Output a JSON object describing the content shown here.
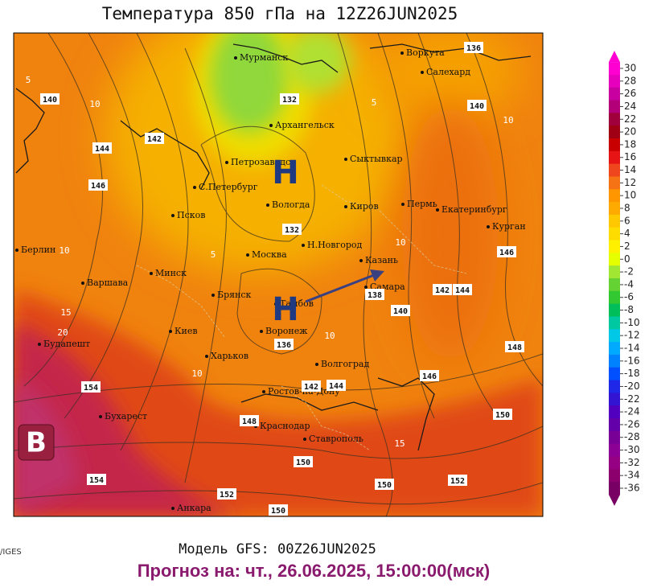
{
  "header": {
    "title": "Температура 850 гПа на 12Z26JUN2025"
  },
  "map": {
    "cities": [
      "Мурманск",
      "Воркута",
      "Салехард",
      "Архангельск",
      "Петрозаводск",
      "Сыктывкар",
      "С.Петербург",
      "Вологда",
      "Киров",
      "Пермь",
      "Екатеринбург",
      "Псков",
      "Курган",
      "Берлин",
      "Н.Новгород",
      "Москва",
      "Казань",
      "Минск",
      "Варшава",
      "Самара",
      "Брянск",
      "Тамбов",
      "Киев",
      "Воронеж",
      "Харьков",
      "Будапешт",
      "Волгоград",
      "Ростов-на-Дону",
      "Бухарест",
      "Краснодар",
      "Ставрополь",
      "Анкара"
    ],
    "height_labels": [
      "140",
      "144",
      "142",
      "146",
      "132",
      "136",
      "140",
      "132",
      "146",
      "142",
      "144",
      "138",
      "140",
      "136",
      "148",
      "146",
      "142",
      "144",
      "154",
      "150",
      "148",
      "150",
      "150",
      "152",
      "154",
      "152",
      "150"
    ],
    "temp_labels": [
      "5",
      "10",
      "5",
      "10",
      "5",
      "10",
      "15",
      "20",
      "10",
      "10",
      "15",
      "10"
    ],
    "pressure_centers": [
      "Н",
      "Н",
      "В"
    ]
  },
  "colorbar": {
    "ticks": [
      30,
      28,
      26,
      24,
      22,
      20,
      18,
      16,
      14,
      12,
      10,
      8,
      6,
      4,
      2,
      0,
      -2,
      -4,
      -6,
      -8,
      -10,
      -12,
      -14,
      -16,
      -18,
      -20,
      -22,
      -24,
      -26,
      -28,
      -30,
      -32,
      -34,
      -36
    ],
    "colors": [
      "#ff00d2",
      "#e600be",
      "#c800a0",
      "#b40078",
      "#a0003c",
      "#a00014",
      "#c80000",
      "#e61414",
      "#f0461e",
      "#f57314",
      "#ff9600",
      "#ffaa00",
      "#ffc800",
      "#ffdc00",
      "#fff000",
      "#e6ff00",
      "#a0e632",
      "#64d232",
      "#32c832",
      "#00be5a",
      "#00c8a0",
      "#00c8e6",
      "#00aaff",
      "#0082ff",
      "#0050ff",
      "#1e28e6",
      "#3214d2",
      "#5000be",
      "#6400aa",
      "#780096",
      "#8c0096",
      "#960082",
      "#8c006e",
      "#780064"
    ]
  },
  "footer": {
    "source": "/IGES",
    "model": "Модель GFS: 00Z26JUN2025",
    "forecast": "Прогноз на: чт., 26.06.2025, 15:00:00(мск)"
  }
}
